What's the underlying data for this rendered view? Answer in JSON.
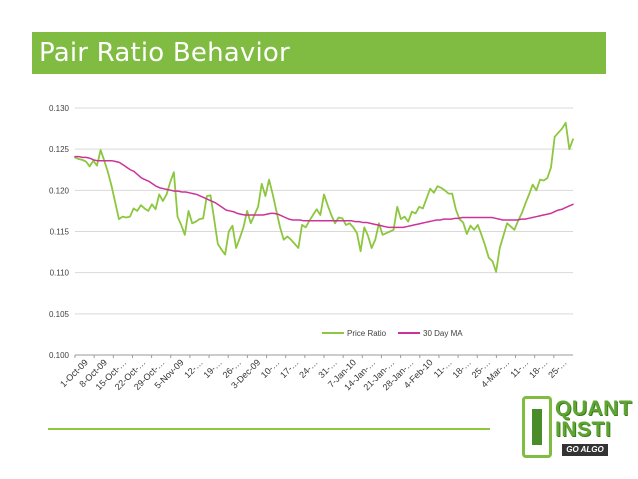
{
  "slide": {
    "title": "Pair Ratio Behavior"
  },
  "logo": {
    "line1": "QUANT",
    "line2": "INSTI",
    "tagline": "GO ALGO"
  },
  "chart_data": {
    "type": "line",
    "title": "",
    "xlabel": "",
    "ylabel": "",
    "ylim": [
      0.1,
      0.13
    ],
    "yticks": [
      "0.100",
      "0.105",
      "0.110",
      "0.115",
      "0.120",
      "0.125",
      "0.130"
    ],
    "x_tick_labels": [
      "1-Oct-09",
      "8-Oct-09",
      "15-Oct-…",
      "22-Oct-…",
      "29-Oct-…",
      "5-Nov-09",
      "12-…",
      "19-…",
      "26-…",
      "3-Dec-09",
      "10-…",
      "17-…",
      "24-…",
      "31-…",
      "7-Jan-10",
      "14-Jan-…",
      "21-Jan-…",
      "28-Jan-…",
      "4-Feb-10",
      "11-…",
      "18-…",
      "25-…",
      "4-Mar-…",
      "11-…",
      "18-…",
      "25-…"
    ],
    "legend_position": "bottom-right",
    "series": [
      {
        "name": "Price Ratio",
        "color": "#8dc63f",
        "values": [
          0.124,
          0.1238,
          0.1237,
          0.1235,
          0.1229,
          0.1236,
          0.123,
          0.1249,
          0.1236,
          0.1222,
          0.1205,
          0.1185,
          0.1165,
          0.1168,
          0.1167,
          0.1168,
          0.1178,
          0.1175,
          0.1182,
          0.1178,
          0.1175,
          0.1183,
          0.1177,
          0.1195,
          0.1187,
          0.1195,
          0.121,
          0.1222,
          0.1168,
          0.1158,
          0.1146,
          0.1175,
          0.116,
          0.1162,
          0.1165,
          0.1166,
          0.1193,
          0.1194,
          0.1165,
          0.1135,
          0.1128,
          0.1122,
          0.115,
          0.1157,
          0.113,
          0.1142,
          0.1155,
          0.1175,
          0.116,
          0.117,
          0.118,
          0.1208,
          0.1193,
          0.1213,
          0.1195,
          0.1175,
          0.1155,
          0.114,
          0.1144,
          0.114,
          0.1135,
          0.113,
          0.1158,
          0.1155,
          0.1163,
          0.117,
          0.1177,
          0.117,
          0.1195,
          0.1182,
          0.117,
          0.116,
          0.1167,
          0.1166,
          0.1158,
          0.116,
          0.1155,
          0.1148,
          0.1126,
          0.1155,
          0.1145,
          0.113,
          0.114,
          0.116,
          0.1146,
          0.1148,
          0.115,
          0.1152,
          0.118,
          0.1165,
          0.1168,
          0.1162,
          0.1174,
          0.1172,
          0.118,
          0.1178,
          0.119,
          0.1202,
          0.1197,
          0.1205,
          0.1203,
          0.12,
          0.1196,
          0.1196,
          0.1177,
          0.1165,
          0.1161,
          0.1147,
          0.1157,
          0.1152,
          0.1158,
          0.1146,
          0.1133,
          0.1118,
          0.1114,
          0.1101,
          0.113,
          0.1145,
          0.116,
          0.1156,
          0.1152,
          0.1163,
          0.1172,
          0.1184,
          0.1195,
          0.1207,
          0.12,
          0.1213,
          0.1212,
          0.1215,
          0.1228,
          0.1265,
          0.127,
          0.1275,
          0.1282,
          0.125,
          0.1262
        ]
      },
      {
        "name": "30 Day MA",
        "color": "#cc3399",
        "values": [
          0.1241,
          0.1241,
          0.124,
          0.124,
          0.1239,
          0.1237,
          0.1236,
          0.1236,
          0.1236,
          0.1236,
          0.1236,
          0.1235,
          0.1234,
          0.1231,
          0.1228,
          0.1225,
          0.1223,
          0.1219,
          0.1215,
          0.1213,
          0.1211,
          0.1208,
          0.1205,
          0.1203,
          0.1202,
          0.1201,
          0.12,
          0.1199,
          0.1199,
          0.1198,
          0.1198,
          0.1197,
          0.1196,
          0.1195,
          0.1193,
          0.1191,
          0.1189,
          0.1187,
          0.1185,
          0.1182,
          0.1179,
          0.1176,
          0.1175,
          0.1174,
          0.1172,
          0.1171,
          0.117,
          0.117,
          0.117,
          0.117,
          0.117,
          0.117,
          0.1171,
          0.1172,
          0.1172,
          0.1171,
          0.1169,
          0.1167,
          0.1165,
          0.1164,
          0.1164,
          0.1164,
          0.1163,
          0.1163,
          0.1163,
          0.1163,
          0.1163,
          0.1163,
          0.1163,
          0.1163,
          0.1163,
          0.1163,
          0.1163,
          0.1163,
          0.1163,
          0.1163,
          0.1162,
          0.1162,
          0.1161,
          0.1161,
          0.116,
          0.1159,
          0.1158,
          0.1157,
          0.1156,
          0.1155,
          0.1155,
          0.1155,
          0.1155,
          0.1155,
          0.1156,
          0.1157,
          0.1158,
          0.1159,
          0.116,
          0.1161,
          0.1162,
          0.1163,
          0.1164,
          0.1164,
          0.1165,
          0.1165,
          0.1165,
          0.1166,
          0.1166,
          0.1167,
          0.1167,
          0.1167,
          0.1167,
          0.1167,
          0.1167,
          0.1167,
          0.1167,
          0.1167,
          0.1166,
          0.1165,
          0.1164,
          0.1164,
          0.1164,
          0.1164,
          0.1164,
          0.1165,
          0.1165,
          0.1166,
          0.1167,
          0.1168,
          0.1169,
          0.117,
          0.1171,
          0.1172,
          0.1174,
          0.1176,
          0.1177,
          0.1179,
          0.1181,
          0.1183
        ]
      }
    ]
  }
}
